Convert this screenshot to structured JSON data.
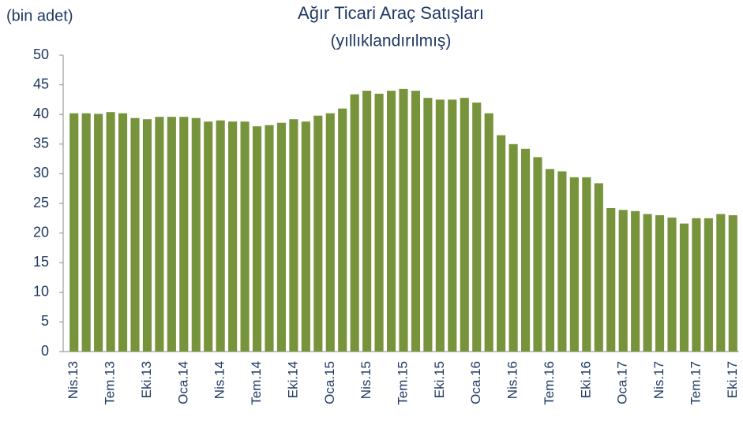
{
  "chart_data": {
    "type": "bar",
    "title": "Ağır Ticari Araç Satışları",
    "subtitle": "(yıllıklandırılmış)",
    "y_label": "(bin adet)",
    "categories": [
      "Nis.13",
      null,
      null,
      "Tem.13",
      null,
      null,
      "Eki.13",
      null,
      null,
      "Oca.14",
      null,
      null,
      "Nis.14",
      null,
      null,
      "Tem.14",
      null,
      null,
      "Eki.14",
      null,
      null,
      "Oca.15",
      null,
      null,
      "Nis.15",
      null,
      null,
      "Tem.15",
      null,
      null,
      "Eki.15",
      null,
      null,
      "Oca.16",
      null,
      null,
      "Nis.16",
      null,
      null,
      "Tem.16",
      null,
      null,
      "Eki.16",
      null,
      null,
      "Oca.17",
      null,
      null,
      "Nis.17",
      null,
      null,
      "Tem.17",
      null,
      null,
      "Eki.17"
    ],
    "values": [
      40.2,
      40.2,
      40.1,
      40.4,
      40.2,
      39.4,
      39.2,
      39.6,
      39.6,
      39.6,
      39.4,
      38.8,
      39.0,
      38.8,
      38.8,
      38.0,
      38.2,
      38.6,
      39.2,
      38.8,
      39.8,
      40.2,
      41.0,
      43.4,
      44.0,
      43.5,
      44.0,
      44.3,
      44.0,
      42.8,
      42.5,
      42.5,
      42.8,
      42.0,
      40.2,
      36.5,
      35.0,
      34.2,
      32.8,
      30.8,
      30.4,
      29.4,
      29.4,
      28.4,
      24.2,
      23.9,
      23.7,
      23.2,
      23.0,
      22.6,
      21.6,
      22.5,
      22.5,
      23.2,
      23.0
    ],
    "color": "#77933c",
    "ylim": [
      0,
      50
    ],
    "yticks": [
      0,
      5,
      10,
      15,
      20,
      25,
      30,
      35,
      40,
      45,
      50
    ],
    "grid": false
  }
}
